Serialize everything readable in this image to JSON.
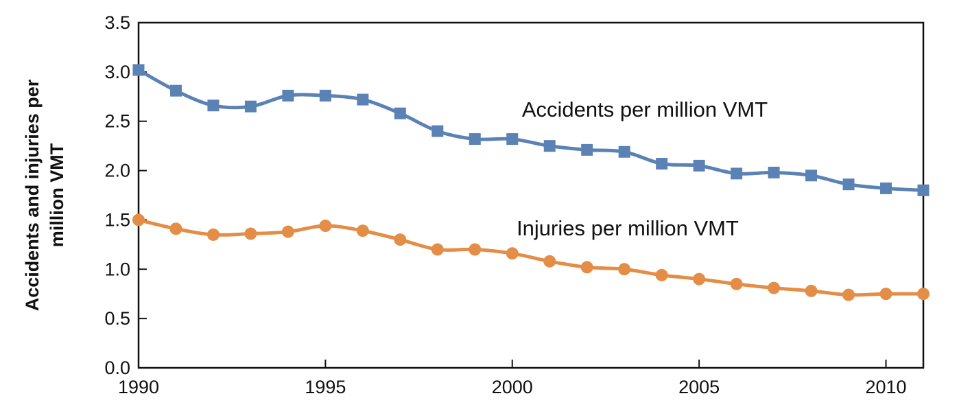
{
  "chart_data": {
    "type": "line",
    "title": "",
    "xlabel": "",
    "ylabel_lines": [
      "Accidents and injuries per",
      "million VMT"
    ],
    "xlim": [
      1990,
      2011
    ],
    "ylim": [
      0,
      3.5
    ],
    "x_ticks": [
      1990,
      1995,
      2000,
      2005,
      2010
    ],
    "x_tick_labels": [
      "1990",
      "1995",
      "2000",
      "2005",
      "2010"
    ],
    "y_ticks": [
      0,
      0.5,
      1.0,
      1.5,
      2.0,
      2.5,
      3.0,
      3.5
    ],
    "y_tick_labels": [
      "0.0",
      "0.5",
      "1.0",
      "1.5",
      "2.0",
      "2.5",
      "3.0",
      "3.5"
    ],
    "grid": false,
    "legend": "inline labels",
    "x": [
      1990,
      1991,
      1992,
      1993,
      1994,
      1995,
      1996,
      1997,
      1998,
      1999,
      2000,
      2001,
      2002,
      2003,
      2004,
      2005,
      2006,
      2007,
      2008,
      2009,
      2010,
      2011
    ],
    "series": [
      {
        "name": "Accidents per million VMT",
        "color": "#5b82b5",
        "marker": "square",
        "values": [
          3.02,
          2.81,
          2.66,
          2.65,
          2.76,
          2.76,
          2.72,
          2.58,
          2.4,
          2.32,
          2.32,
          2.25,
          2.21,
          2.19,
          2.07,
          2.05,
          1.97,
          1.98,
          1.95,
          1.86,
          1.82,
          1.8
        ]
      },
      {
        "name": "Injuries per million VMT",
        "color": "#e48d46",
        "marker": "circle",
        "values": [
          1.5,
          1.41,
          1.35,
          1.36,
          1.38,
          1.44,
          1.39,
          1.3,
          1.2,
          1.2,
          1.16,
          1.08,
          1.02,
          1.0,
          0.94,
          0.9,
          0.85,
          0.81,
          0.78,
          0.74,
          0.75,
          0.75
        ]
      }
    ]
  }
}
